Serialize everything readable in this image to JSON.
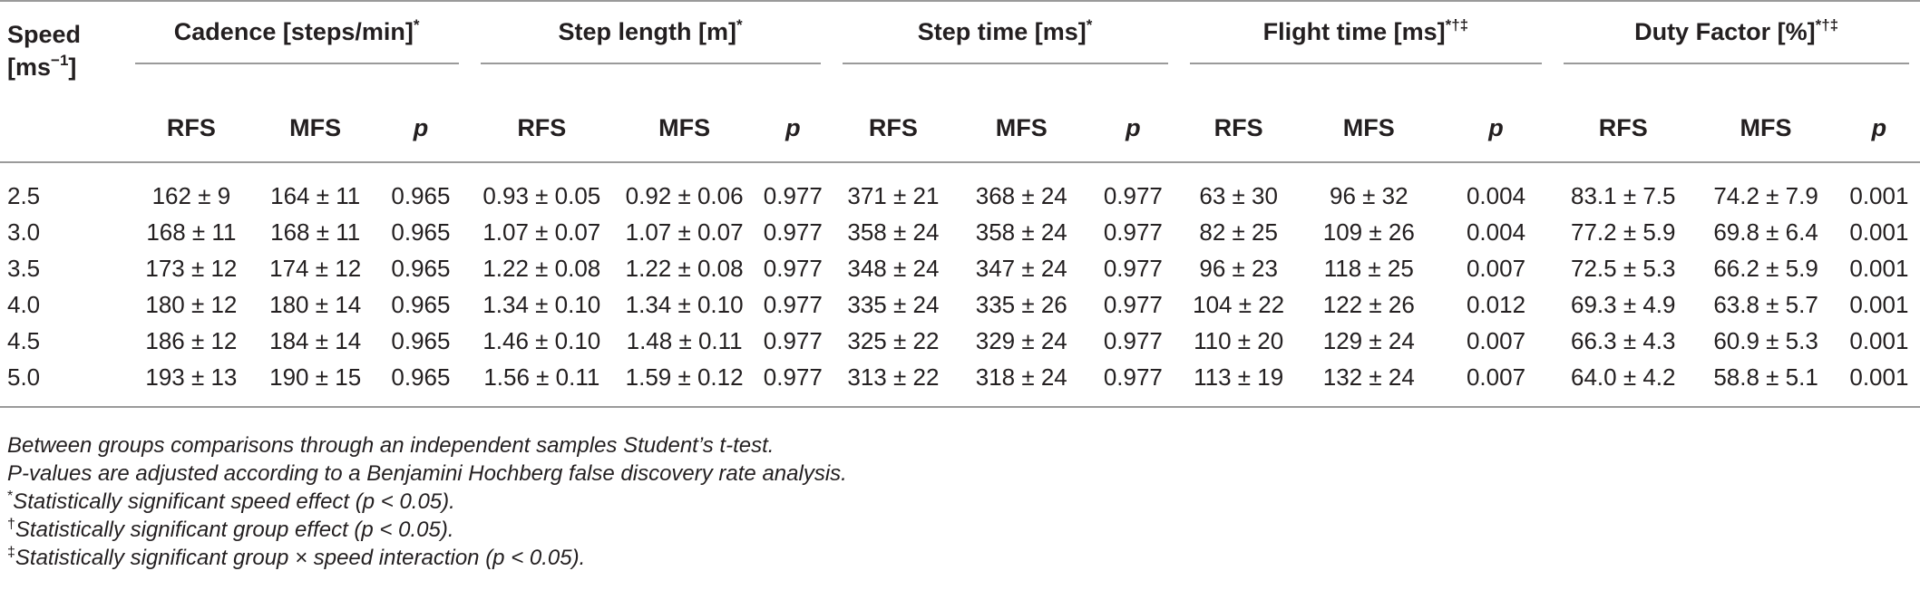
{
  "table": {
    "speed_header": "Speed",
    "speed_unit_base": "[ms",
    "speed_unit_exp": "−1",
    "speed_unit_close": "]",
    "groups": [
      {
        "title": "Cadence [steps/min]",
        "marks": "*"
      },
      {
        "title": "Step length [m]",
        "marks": "*"
      },
      {
        "title": "Step time [ms]",
        "marks": "*"
      },
      {
        "title": "Flight time [ms]",
        "marks": "*†‡"
      },
      {
        "title": "Duty Factor [%]",
        "marks": "*†‡"
      }
    ],
    "subheaders": [
      "RFS",
      "MFS",
      "p"
    ],
    "rows": [
      {
        "speed": "2.5",
        "cells": [
          "162 ± 9",
          "164 ± 11",
          "0.965",
          "0.93 ± 0.05",
          "0.92 ± 0.06",
          "0.977",
          "371 ± 21",
          "368 ± 24",
          "0.977",
          "63 ± 30",
          "96 ± 32",
          "0.004",
          "83.1 ± 7.5",
          "74.2 ± 7.9",
          "0.001"
        ]
      },
      {
        "speed": "3.0",
        "cells": [
          "168 ± 11",
          "168 ± 11",
          "0.965",
          "1.07 ± 0.07",
          "1.07 ± 0.07",
          "0.977",
          "358 ± 24",
          "358 ± 24",
          "0.977",
          "82 ± 25",
          "109 ± 26",
          "0.004",
          "77.2 ± 5.9",
          "69.8 ± 6.4",
          "0.001"
        ]
      },
      {
        "speed": "3.5",
        "cells": [
          "173 ± 12",
          "174 ± 12",
          "0.965",
          "1.22 ± 0.08",
          "1.22 ± 0.08",
          "0.977",
          "348 ± 24",
          "347 ± 24",
          "0.977",
          "96 ± 23",
          "118 ± 25",
          "0.007",
          "72.5 ± 5.3",
          "66.2 ± 5.9",
          "0.001"
        ]
      },
      {
        "speed": "4.0",
        "cells": [
          "180 ± 12",
          "180 ± 14",
          "0.965",
          "1.34 ± 0.10",
          "1.34 ± 0.10",
          "0.977",
          "335 ± 24",
          "335 ± 26",
          "0.977",
          "104 ± 22",
          "122 ± 26",
          "0.012",
          "69.3 ± 4.9",
          "63.8 ± 5.7",
          "0.001"
        ]
      },
      {
        "speed": "4.5",
        "cells": [
          "186 ± 12",
          "184 ± 14",
          "0.965",
          "1.46 ± 0.10",
          "1.48 ± 0.11",
          "0.977",
          "325 ± 22",
          "329 ± 24",
          "0.977",
          "110 ± 20",
          "129 ± 24",
          "0.007",
          "66.3 ± 4.3",
          "60.9 ± 5.3",
          "0.001"
        ]
      },
      {
        "speed": "5.0",
        "cells": [
          "193 ± 13",
          "190 ± 15",
          "0.965",
          "1.56 ± 0.11",
          "1.59 ± 0.12",
          "0.977",
          "313 ± 22",
          "318 ± 24",
          "0.977",
          "113 ± 19",
          "132 ± 24",
          "0.007",
          "64.0 ± 4.2",
          "58.8 ± 5.1",
          "0.001"
        ]
      }
    ]
  },
  "notes": [
    {
      "mark": "",
      "text": "Between groups comparisons through an independent samples Student’s t-test."
    },
    {
      "mark": "",
      "text": "P-values are adjusted according to a Benjamini Hochberg false discovery rate analysis."
    },
    {
      "mark": "*",
      "text": "Statistically significant speed effect (p < 0.05)."
    },
    {
      "mark": "†",
      "text": "Statistically significant group effect (p < 0.05)."
    },
    {
      "mark": "‡",
      "text": "Statistically significant group × speed interaction (p < 0.05)."
    }
  ]
}
